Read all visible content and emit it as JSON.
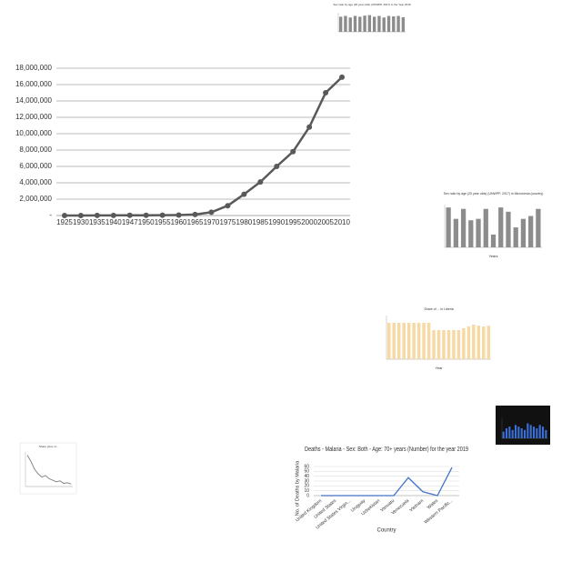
{
  "chart_data": [
    {
      "type": "line",
      "color": "#595959",
      "grid": true,
      "categories": [
        "1925",
        "1930",
        "1935",
        "1940",
        "1947",
        "1950",
        "1955",
        "1960",
        "1965",
        "1970",
        "1975",
        "1980",
        "1985",
        "1990",
        "1995",
        "2000",
        "2005",
        "2010"
      ],
      "values": [
        0,
        0,
        10000,
        20000,
        30000,
        30000,
        40000,
        60000,
        120000,
        400000,
        1200000,
        2600000,
        4100000,
        6000000,
        7800000,
        10800000,
        15000000,
        16900000
      ],
      "ylim": [
        0,
        18000000
      ],
      "yticks": [
        {
          "value": 0,
          "label": "-"
        },
        {
          "value": 2000000,
          "label": "2,000,000"
        },
        {
          "value": 4000000,
          "label": "4,000,000"
        },
        {
          "value": 6000000,
          "label": "6,000,000"
        },
        {
          "value": 8000000,
          "label": "8,000,000"
        },
        {
          "value": 10000000,
          "label": "10,000,000"
        },
        {
          "value": 12000000,
          "label": "12,000,000"
        },
        {
          "value": 14000000,
          "label": "14,000,000"
        },
        {
          "value": 16000000,
          "label": "16,000,000"
        },
        {
          "value": 18000000,
          "label": "18,000,000"
        }
      ]
    },
    {
      "type": "bar",
      "color": "#8c8c8c",
      "title": "Sex ratio by age (20 year olds) (UNWPP, 2017) in the Year 2019",
      "values": [
        0.95,
        1.0,
        0.9,
        1.0,
        0.95,
        1.02,
        1.05,
        0.95,
        1.0,
        0.9,
        1.0,
        0.97,
        1.0,
        0.92
      ],
      "ylim": [
        0,
        1.2
      ]
    },
    {
      "type": "bar",
      "color": "#8c8c8c",
      "title": "Sex ratio by age (20 year olds) (UNWPP, 2017) in Micronesia (country)",
      "xlabel": "Years",
      "values": [
        1.13,
        1.05,
        1.12,
        1.04,
        1.05,
        1.12,
        0.94,
        1.13,
        1.1,
        0.99,
        1.05,
        1.07,
        1.12
      ],
      "ylim": [
        0.85,
        1.15
      ]
    },
    {
      "type": "bar",
      "color": "#f6d9a5",
      "title": "Share of ... in Liberia",
      "xlabel": "Year",
      "values": [
        100,
        100,
        100,
        100,
        100,
        100,
        100,
        100,
        100,
        80,
        80,
        80,
        80,
        80,
        80,
        85,
        90,
        95,
        92,
        90,
        92
      ],
      "ylim": [
        0,
        120
      ]
    },
    {
      "type": "bar",
      "color": "#3a6fd8",
      "background": "#111111",
      "values": [
        4,
        6,
        7,
        5,
        8,
        7,
        6,
        5,
        9,
        8,
        7,
        6,
        8,
        7,
        5
      ],
      "ylim": [
        0,
        12
      ]
    },
    {
      "type": "line",
      "color": "#888888",
      "title": "Share price of ...",
      "values": [
        100,
        80,
        55,
        40,
        30,
        35,
        25,
        20,
        15,
        18,
        10,
        12,
        8
      ],
      "ylim": [
        0,
        110
      ]
    },
    {
      "type": "line",
      "color": "#4472c4",
      "grid": true,
      "title": "Deaths - Malaria - Sex: Both - Age: 70+ years (Number) for the year 2019",
      "ylabel": "No. of Deaths by Malaria",
      "xlabel": "Country",
      "categories": [
        "United Kingdom",
        "United States",
        "United States Virgin...",
        "Uruguay",
        "Uzbekistan",
        "Vanuatu",
        "Venezuela",
        "Vietnam",
        "Wales",
        "Western Pacific..."
      ],
      "values": [
        0,
        0,
        0,
        0,
        0,
        0,
        37,
        8,
        0,
        58
      ],
      "ylim": [
        0,
        60
      ],
      "yticks": [
        0,
        10,
        20,
        30,
        40,
        50,
        60
      ]
    }
  ]
}
